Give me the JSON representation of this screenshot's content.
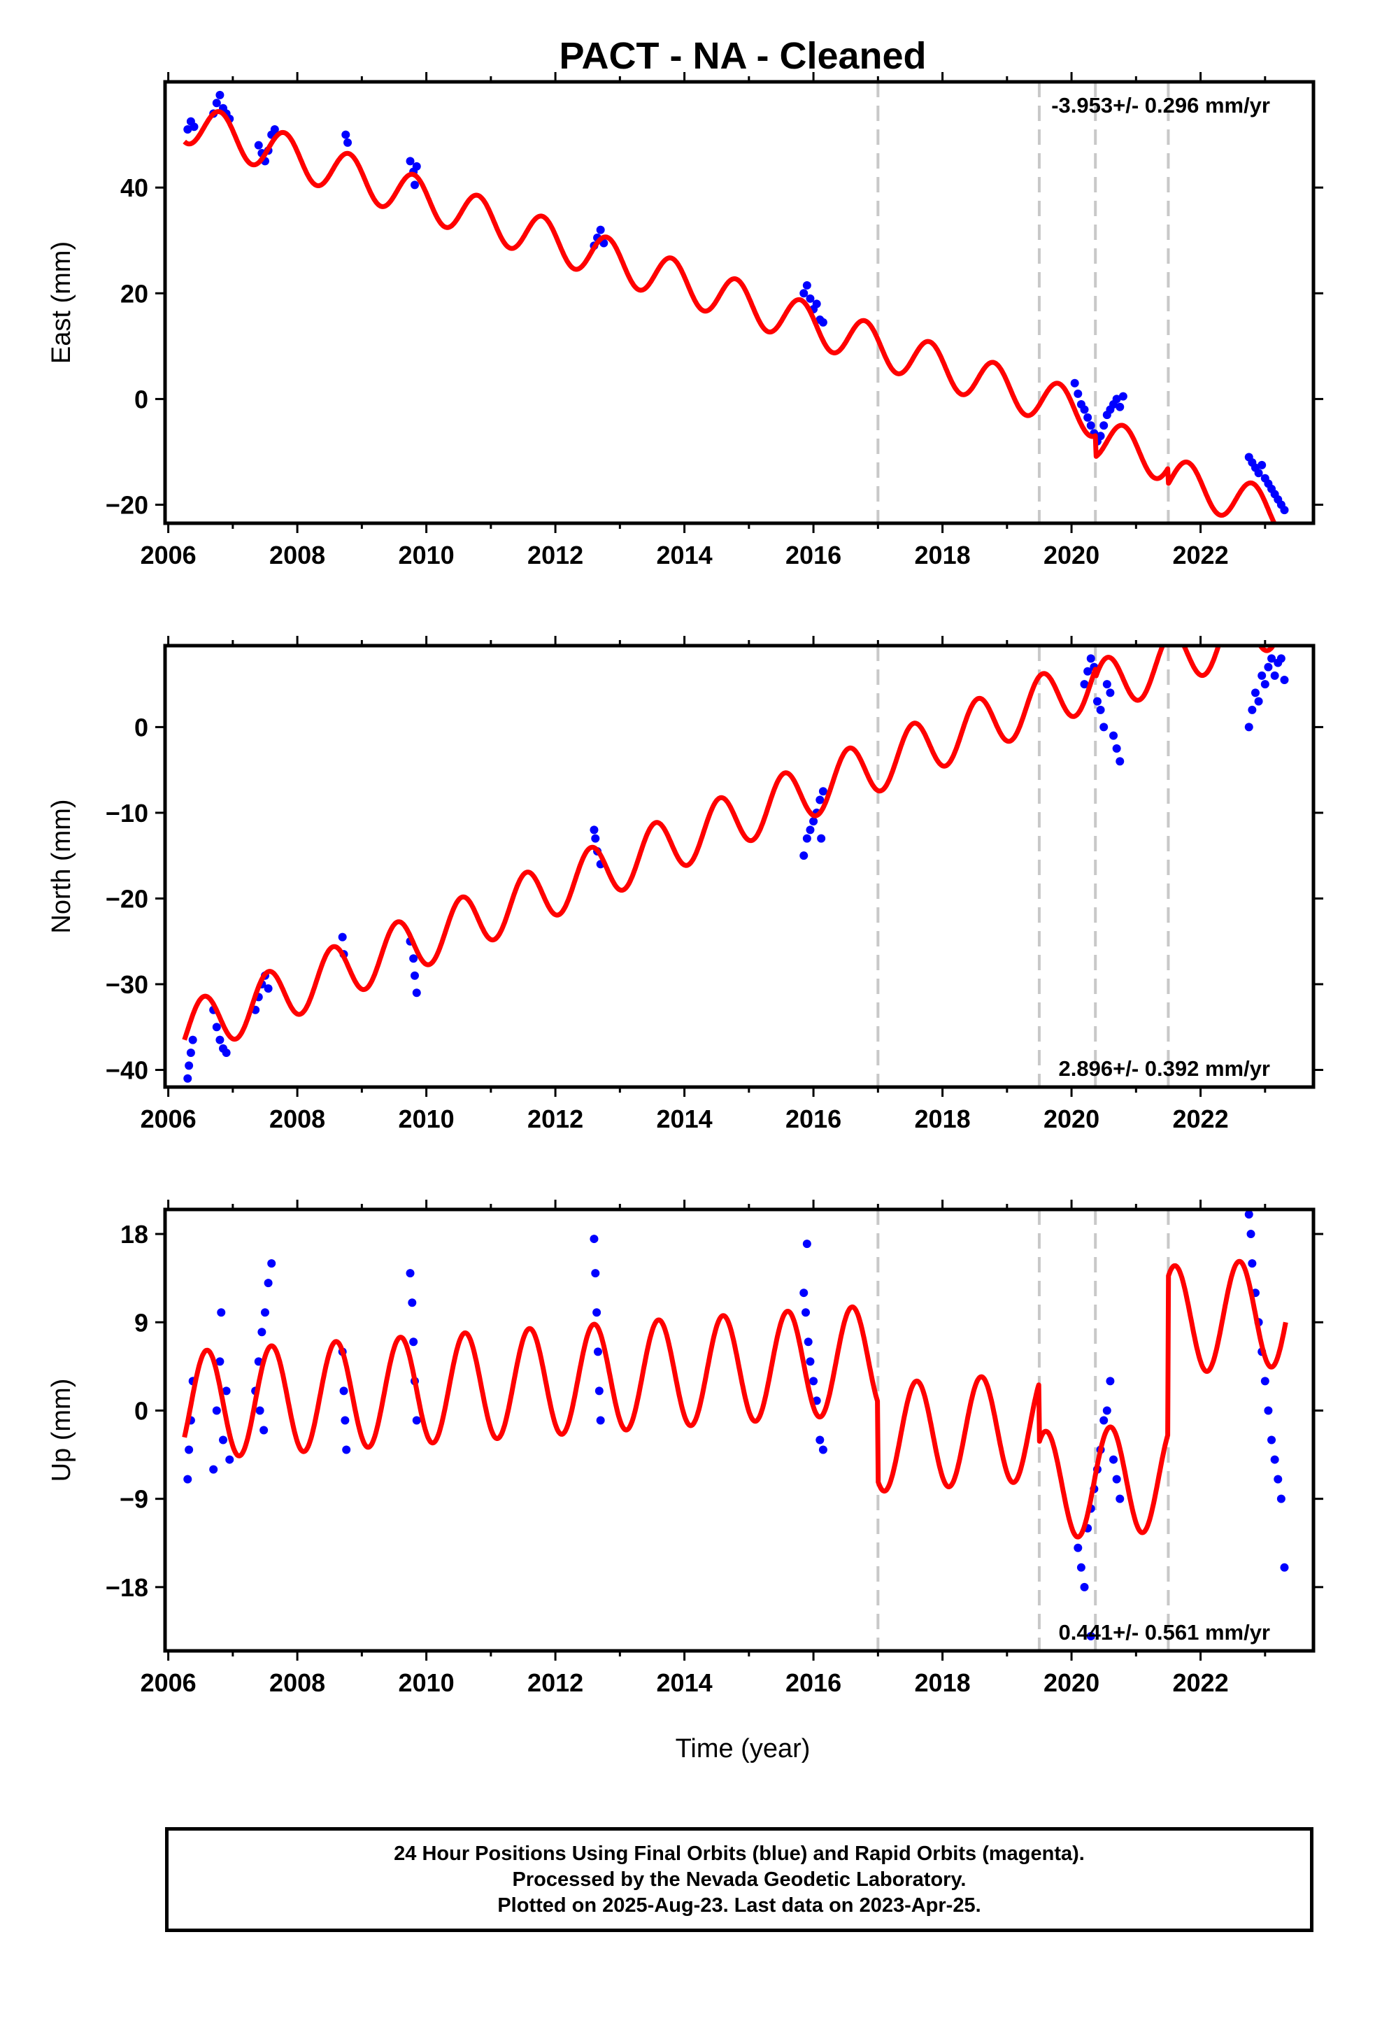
{
  "title": "PACT  - NA - Cleaned",
  "xlabel": "Time (year)",
  "footer": {
    "line1": "24 Hour Positions Using Final Orbits (blue) and Rapid Orbits (magenta).",
    "line2": "Processed by the Nevada Geodetic Laboratory.",
    "line3": "Plotted on 2025-Aug-23. Last data on 2023-Apr-25."
  },
  "colors": {
    "data": "#0000ff",
    "model": "#ff0000",
    "events": "#c8c8c8",
    "axes": "#000000"
  },
  "chart_data": [
    {
      "type": "scatter",
      "component": "East",
      "ylabel": "East (mm)",
      "rate": "-3.953+/- 0.296 mm/yr",
      "rate_position": "top-right",
      "xlim": [
        2005.95,
        2023.75
      ],
      "ylim": [
        -23.5,
        60
      ],
      "yticks": [
        -20,
        0,
        20,
        40
      ],
      "xticks": [
        2006,
        2008,
        2010,
        2012,
        2014,
        2016,
        2018,
        2020,
        2022
      ],
      "event_lines": [
        2017.0,
        2019.5,
        2020.37,
        2021.5
      ],
      "model": {
        "trend_start": 52.5,
        "trend_rate": -3.953,
        "annual_amp": 4.0,
        "phase_peak_frac": 0.8,
        "offsets": [
          {
            "t": 2019.5,
            "dy": 0
          },
          {
            "t": 2020.37,
            "dy": -4.0
          },
          {
            "t": 2021.5,
            "dy": -3.0
          }
        ]
      },
      "points": [
        [
          2006.3,
          51
        ],
        [
          2006.35,
          52.5
        ],
        [
          2006.4,
          51.5
        ],
        [
          2006.7,
          54
        ],
        [
          2006.75,
          56
        ],
        [
          2006.8,
          57.5
        ],
        [
          2006.85,
          55
        ],
        [
          2006.9,
          54
        ],
        [
          2006.95,
          53
        ],
        [
          2007.4,
          48
        ],
        [
          2007.45,
          46.5
        ],
        [
          2007.5,
          45
        ],
        [
          2007.55,
          47
        ],
        [
          2007.6,
          50
        ],
        [
          2007.65,
          51
        ],
        [
          2008.75,
          50
        ],
        [
          2008.78,
          48.5
        ],
        [
          2009.75,
          45
        ],
        [
          2009.8,
          43
        ],
        [
          2009.82,
          40.5
        ],
        [
          2009.85,
          44
        ],
        [
          2012.6,
          29
        ],
        [
          2012.65,
          30.5
        ],
        [
          2012.7,
          32
        ],
        [
          2012.75,
          29.5
        ],
        [
          2015.85,
          20
        ],
        [
          2015.9,
          21.5
        ],
        [
          2015.95,
          19
        ],
        [
          2016.0,
          17
        ],
        [
          2016.05,
          18
        ],
        [
          2016.1,
          15
        ],
        [
          2016.15,
          14.5
        ],
        [
          2020.05,
          3
        ],
        [
          2020.1,
          1
        ],
        [
          2020.15,
          -1
        ],
        [
          2020.2,
          -2
        ],
        [
          2020.25,
          -3.5
        ],
        [
          2020.3,
          -5
        ],
        [
          2020.35,
          -6.5
        ],
        [
          2020.4,
          -8
        ],
        [
          2020.45,
          -7
        ],
        [
          2020.5,
          -5
        ],
        [
          2020.55,
          -3
        ],
        [
          2020.6,
          -2
        ],
        [
          2020.65,
          -1
        ],
        [
          2020.7,
          0
        ],
        [
          2020.75,
          -1.5
        ],
        [
          2020.8,
          0.5
        ],
        [
          2022.75,
          -11
        ],
        [
          2022.8,
          -12
        ],
        [
          2022.85,
          -13
        ],
        [
          2022.9,
          -14
        ],
        [
          2022.95,
          -12.5
        ],
        [
          2023.0,
          -15
        ],
        [
          2023.05,
          -16
        ],
        [
          2023.1,
          -17
        ],
        [
          2023.15,
          -18
        ],
        [
          2023.2,
          -19
        ],
        [
          2023.25,
          -20
        ],
        [
          2023.3,
          -21
        ]
      ]
    },
    {
      "type": "scatter",
      "component": "North",
      "ylabel": "North (mm)",
      "rate": "2.896+/- 0.392 mm/yr",
      "rate_position": "bottom-right",
      "xlim": [
        2005.95,
        2023.75
      ],
      "ylim": [
        -42,
        9.5
      ],
      "yticks": [
        -40,
        -30,
        -20,
        -10,
        0
      ],
      "xticks": [
        2006,
        2008,
        2010,
        2012,
        2014,
        2016,
        2018,
        2020,
        2022
      ],
      "event_lines": [
        2017.0,
        2019.5,
        2020.37,
        2021.5
      ],
      "model": {
        "trend_start": -35.5,
        "trend_rate": 2.896,
        "annual_amp": 3.2,
        "phase_peak_frac": 0.55,
        "offsets": [
          {
            "t": 2019.5,
            "dy": 0
          },
          {
            "t": 2020.37,
            "dy": -1.0
          },
          {
            "t": 2021.5,
            "dy": 0
          }
        ]
      },
      "points": [
        [
          2006.3,
          -41
        ],
        [
          2006.32,
          -39.5
        ],
        [
          2006.35,
          -38
        ],
        [
          2006.38,
          -36.5
        ],
        [
          2006.7,
          -33
        ],
        [
          2006.75,
          -35
        ],
        [
          2006.8,
          -36.5
        ],
        [
          2006.85,
          -37.5
        ],
        [
          2006.9,
          -38
        ],
        [
          2007.35,
          -33
        ],
        [
          2007.4,
          -31.5
        ],
        [
          2007.45,
          -30
        ],
        [
          2007.5,
          -29
        ],
        [
          2007.55,
          -30.5
        ],
        [
          2008.7,
          -24.5
        ],
        [
          2008.72,
          -26.5
        ],
        [
          2009.75,
          -25
        ],
        [
          2009.8,
          -27
        ],
        [
          2009.82,
          -29
        ],
        [
          2009.85,
          -31
        ],
        [
          2012.6,
          -12
        ],
        [
          2012.62,
          -13
        ],
        [
          2012.65,
          -14.5
        ],
        [
          2012.7,
          -16
        ],
        [
          2015.85,
          -15
        ],
        [
          2015.9,
          -13
        ],
        [
          2015.95,
          -12
        ],
        [
          2016.0,
          -11
        ],
        [
          2016.05,
          -10
        ],
        [
          2016.1,
          -8.5
        ],
        [
          2016.15,
          -7.5
        ],
        [
          2016.12,
          -13
        ],
        [
          2020.2,
          5
        ],
        [
          2020.25,
          6.5
        ],
        [
          2020.3,
          8
        ],
        [
          2020.35,
          7
        ],
        [
          2020.4,
          3
        ],
        [
          2020.45,
          2
        ],
        [
          2020.5,
          0
        ],
        [
          2020.55,
          5
        ],
        [
          2020.6,
          4
        ],
        [
          2020.65,
          -1
        ],
        [
          2020.7,
          -2.5
        ],
        [
          2020.75,
          -4
        ],
        [
          2022.75,
          0
        ],
        [
          2022.8,
          2
        ],
        [
          2022.85,
          4
        ],
        [
          2022.9,
          3
        ],
        [
          2022.95,
          6
        ],
        [
          2023.0,
          5
        ],
        [
          2023.05,
          7
        ],
        [
          2023.1,
          8
        ],
        [
          2023.15,
          6
        ],
        [
          2023.2,
          7.5
        ],
        [
          2023.25,
          8
        ],
        [
          2023.3,
          5.5
        ]
      ]
    },
    {
      "type": "scatter",
      "component": "Up",
      "ylabel": "Up (mm)",
      "rate": "0.441+/- 0.561 mm/yr",
      "rate_position": "bottom-right",
      "xlim": [
        2005.95,
        2023.75
      ],
      "ylim": [
        -24.5,
        20.5
      ],
      "yticks": [
        -18,
        -9,
        0,
        9,
        18
      ],
      "xticks": [
        2006,
        2008,
        2010,
        2012,
        2014,
        2016,
        2018,
        2020,
        2022
      ],
      "event_lines": [
        2017.0,
        2019.5,
        2020.37,
        2021.5
      ],
      "model": {
        "trend_start": 0.5,
        "trend_rate": 0.441,
        "annual_amp": 5.5,
        "phase_peak_frac": 0.6,
        "offsets": [
          {
            "t": 2017.0,
            "dy": -8.0
          },
          {
            "t": 2019.5,
            "dy": -6.0
          },
          {
            "t": 2020.37,
            "dy": 0
          },
          {
            "t": 2021.5,
            "dy": 16.0
          }
        ]
      },
      "points": [
        [
          2006.3,
          -7
        ],
        [
          2006.32,
          -4
        ],
        [
          2006.35,
          -1
        ],
        [
          2006.38,
          3
        ],
        [
          2006.7,
          -6
        ],
        [
          2006.75,
          0
        ],
        [
          2006.8,
          5
        ],
        [
          2006.82,
          10
        ],
        [
          2006.85,
          -3
        ],
        [
          2006.9,
          2
        ],
        [
          2006.95,
          -5
        ],
        [
          2007.35,
          2
        ],
        [
          2007.4,
          5
        ],
        [
          2007.45,
          8
        ],
        [
          2007.5,
          10
        ],
        [
          2007.55,
          13
        ],
        [
          2007.6,
          15
        ],
        [
          2007.42,
          0
        ],
        [
          2007.48,
          -2
        ],
        [
          2008.7,
          6
        ],
        [
          2008.72,
          2
        ],
        [
          2008.74,
          -1
        ],
        [
          2008.76,
          -4
        ],
        [
          2009.75,
          14
        ],
        [
          2009.78,
          11
        ],
        [
          2009.8,
          7
        ],
        [
          2009.82,
          3
        ],
        [
          2009.85,
          -1
        ],
        [
          2012.6,
          17.5
        ],
        [
          2012.62,
          14
        ],
        [
          2012.64,
          10
        ],
        [
          2012.66,
          6
        ],
        [
          2012.68,
          2
        ],
        [
          2012.7,
          -1
        ],
        [
          2015.85,
          12
        ],
        [
          2015.88,
          10
        ],
        [
          2015.9,
          17
        ],
        [
          2015.92,
          7
        ],
        [
          2015.95,
          5
        ],
        [
          2016.0,
          3
        ],
        [
          2016.05,
          1
        ],
        [
          2016.1,
          -3
        ],
        [
          2016.15,
          -4
        ],
        [
          2020.1,
          -14
        ],
        [
          2020.15,
          -16
        ],
        [
          2020.2,
          -18
        ],
        [
          2020.25,
          -12
        ],
        [
          2020.3,
          -10
        ],
        [
          2020.35,
          -8
        ],
        [
          2020.4,
          -6
        ],
        [
          2020.45,
          -4
        ],
        [
          2020.5,
          -1
        ],
        [
          2020.55,
          0
        ],
        [
          2020.6,
          3
        ],
        [
          2020.65,
          -5
        ],
        [
          2020.7,
          -7
        ],
        [
          2020.75,
          -9
        ],
        [
          2020.3,
          -23
        ],
        [
          2022.75,
          20
        ],
        [
          2022.78,
          18
        ],
        [
          2022.8,
          15
        ],
        [
          2022.85,
          12
        ],
        [
          2022.9,
          9
        ],
        [
          2022.95,
          6
        ],
        [
          2023.0,
          3
        ],
        [
          2023.05,
          0
        ],
        [
          2023.1,
          -3
        ],
        [
          2023.15,
          -5
        ],
        [
          2023.2,
          -7
        ],
        [
          2023.25,
          -9
        ],
        [
          2023.3,
          -16
        ]
      ]
    }
  ]
}
